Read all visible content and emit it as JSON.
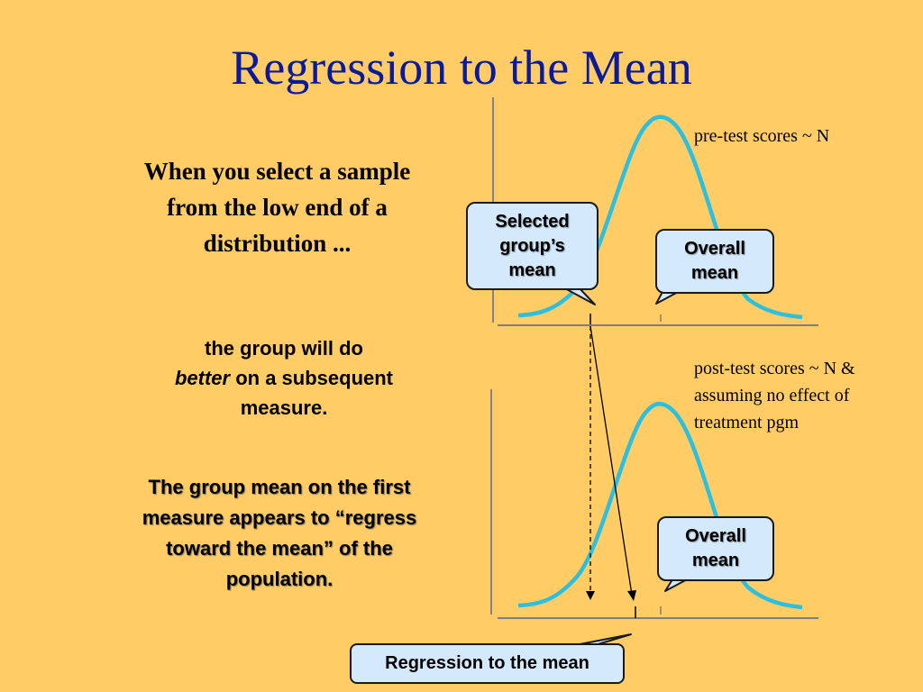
{
  "title": "Regression to the Mean",
  "lead_text": "When you select a sample from the low end of a distribution ...",
  "consequence": {
    "line1": "the group will do",
    "emphasis": "better",
    "line2": " on a subsequent measure."
  },
  "conclusion": "The group mean on the first measure appears to “regress toward the mean” of the population.",
  "pretest_label": "pre-test scores ~ N",
  "posttest_label": "post-test scores ~ N & assuming no effect of treatment pgm",
  "callouts": {
    "selected_group_mean": "Selected\ngroup’s\nmean",
    "overall_mean_top": "Overall\nmean",
    "overall_mean_bottom": "Overall\nmean"
  },
  "regression_label": "Regression to the mean",
  "colors": {
    "background": "#ffcc66",
    "title": "#0a1a9c",
    "curve": "#2bbfe0",
    "callout_fill": "#d4e9fb",
    "axis": "#3a4aa8"
  }
}
